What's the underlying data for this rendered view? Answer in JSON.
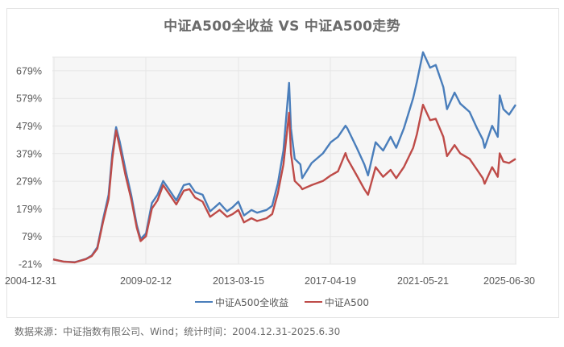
{
  "title": "中证A500全收益 VS 中证A500走势",
  "source_note": "数据来源：中证指数有限公司、Wind；统计时间：2004.12.31-2025.6.30",
  "colors": {
    "total_return": "#4a7ebb",
    "price": "#be4b48",
    "grid": "#e6e6e6",
    "plot_bg": "#f6f6f6"
  },
  "legend": [
    {
      "label": "中证A500全收益",
      "color": "#4a7ebb"
    },
    {
      "label": "中证A500",
      "color": "#be4b48"
    }
  ],
  "chart_data": {
    "type": "line",
    "title": "中证A500全收益 VS 中证A500走势",
    "xlabel": "",
    "ylabel": "",
    "ylim": [
      -21,
      729
    ],
    "y_ticks": [
      "-21%",
      "79%",
      "179%",
      "279%",
      "379%",
      "479%",
      "579%",
      "679%"
    ],
    "y_tick_values": [
      -21,
      79,
      179,
      279,
      379,
      479,
      579,
      679
    ],
    "x_ticks": [
      "2004-12-31",
      "2009-02-12",
      "2013-03-15",
      "2017-04-19",
      "2021-05-21",
      "2025-06-30"
    ],
    "grid": true,
    "legend_position": "bottom",
    "x": [
      "2004-12-31",
      "2005-06",
      "2005-12",
      "2006-06",
      "2006-09",
      "2006-12",
      "2007-03",
      "2007-06",
      "2007-08",
      "2007-10",
      "2007-12",
      "2008-03",
      "2008-06",
      "2008-09",
      "2008-11",
      "2009-02-12",
      "2009-05",
      "2009-08",
      "2009-11",
      "2010-02",
      "2010-06",
      "2010-10",
      "2011-01",
      "2011-04",
      "2011-08",
      "2011-12",
      "2012-05",
      "2012-09",
      "2012-12",
      "2013-03-15",
      "2013-06",
      "2013-10",
      "2014-01",
      "2014-06",
      "2014-09",
      "2014-12",
      "2015-03",
      "2015-06",
      "2015-07",
      "2015-09",
      "2015-12",
      "2016-01",
      "2016-06",
      "2016-12",
      "2017-04-19",
      "2017-08",
      "2017-12",
      "2018-01",
      "2018-06",
      "2018-10",
      "2018-12",
      "2019-04",
      "2019-08",
      "2019-12",
      "2020-03",
      "2020-07",
      "2020-12",
      "2021-02",
      "2021-05-21",
      "2021-09",
      "2021-12",
      "2022-04",
      "2022-06",
      "2022-10",
      "2023-01",
      "2023-06",
      "2023-10",
      "2024-01",
      "2024-02",
      "2024-06",
      "2024-09",
      "2024-10",
      "2024-12",
      "2025-03",
      "2025-06-30"
    ],
    "series": [
      {
        "name": "中证A500全收益",
        "values": [
          -4,
          -12,
          -14,
          -2,
          10,
          40,
          140,
          230,
          380,
          475,
          420,
          320,
          230,
          120,
          70,
          90,
          200,
          230,
          280,
          250,
          210,
          265,
          270,
          240,
          230,
          170,
          200,
          170,
          185,
          205,
          155,
          175,
          165,
          175,
          190,
          270,
          390,
          635,
          470,
          360,
          340,
          290,
          345,
          380,
          420,
          440,
          480,
          470,
          400,
          340,
          300,
          420,
          390,
          440,
          400,
          470,
          580,
          640,
          746,
          690,
          700,
          620,
          540,
          600,
          560,
          530,
          470,
          430,
          400,
          480,
          440,
          590,
          540,
          520,
          556
        ]
      },
      {
        "name": "中证A500",
        "values": [
          -4,
          -12,
          -15,
          -3,
          8,
          35,
          130,
          215,
          360,
          463,
          400,
          300,
          215,
          110,
          62,
          80,
          180,
          210,
          265,
          235,
          195,
          245,
          250,
          220,
          205,
          150,
          175,
          150,
          160,
          175,
          130,
          145,
          135,
          145,
          160,
          235,
          340,
          527,
          380,
          280,
          260,
          250,
          265,
          280,
          300,
          315,
          381,
          360,
          300,
          250,
          230,
          330,
          295,
          320,
          290,
          330,
          400,
          450,
          556,
          500,
          505,
          440,
          370,
          410,
          380,
          360,
          320,
          290,
          270,
          330,
          295,
          380,
          350,
          345,
          360
        ]
      }
    ]
  }
}
